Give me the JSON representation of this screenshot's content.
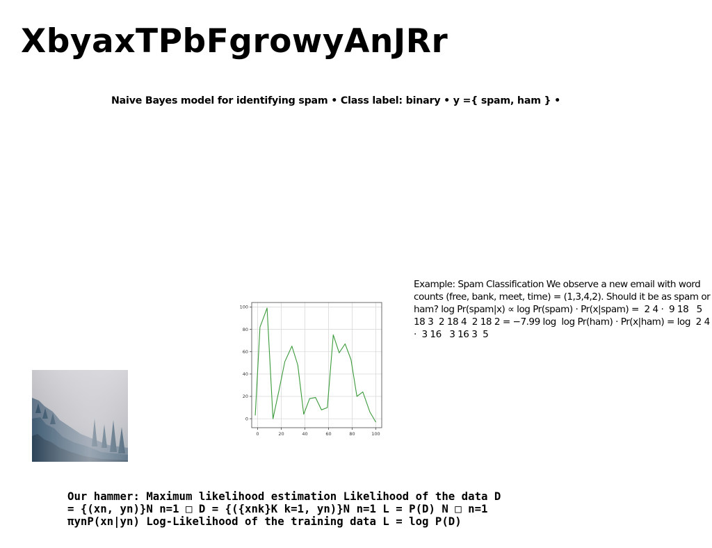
{
  "page": {
    "title": "XbyaxTPbFgrowyAnJRr",
    "subtitle": "Naive Bayes model for identifying spam • Class label: binary • y ={ spam, ham } •",
    "example_text": "Example: Spam Classification We observe a new email with word counts (free, bank, meet, time) = (1,3,4,2). Should it be as spam or ham? log Pr(spam|x) ∝ log Pr(spam) · Pr(x|spam) = ⁡ 2 4 · ⁡ 9 18 ⁡ ⁡ 5 18 ⁡3 ⁡ 2 18 ⁡4 ⁡ 2 18 ⁡2⁡ = −7.99 log ⁡ log Pr(ham) · Pr(x|ham) = log ⁡ 2 4 · ⁡ 3 16 ⁡ ⁡ 3 16 ⁡3 ⁡ 5",
    "hammer_text": "Our hammer: Maximum likelihood estimation Likelihood of the data D = {(xn, yn)}N n=1 □ D = {({xnk}K k=1, yn)}N n=1 L = P(D) N □ n=1 πynP(xn|yn) Log-Likelihood of the training data L = log P(D)"
  },
  "photo": {
    "subject": "misty forest hillside",
    "colors": [
      "#b9b9bf",
      "#3c5f7c",
      "#2b4156"
    ]
  },
  "chart_data": {
    "type": "line",
    "x": [
      -2,
      2,
      8,
      13,
      18,
      23,
      29,
      34,
      39,
      44,
      49,
      54,
      59,
      64,
      69,
      74,
      79,
      84,
      89,
      95,
      100
    ],
    "values": [
      3,
      82,
      99,
      0,
      25,
      51,
      65,
      48,
      4,
      18,
      19,
      8,
      10,
      75,
      59,
      67,
      53,
      20,
      24,
      6,
      -3
    ],
    "xticks": [
      "0",
      "20",
      "40",
      "60",
      "80",
      "100"
    ],
    "xtick_values": [
      0,
      20,
      40,
      60,
      80,
      100
    ],
    "yticks": [
      "0",
      "20",
      "40",
      "60",
      "80",
      "100"
    ],
    "ytick_values": [
      0,
      20,
      40,
      60,
      80,
      100
    ],
    "xlim": [
      -5,
      105
    ],
    "ylim": [
      -8,
      104
    ],
    "grid": true,
    "line_color": "#3a9a3a",
    "title": "",
    "xlabel": "",
    "ylabel": ""
  }
}
